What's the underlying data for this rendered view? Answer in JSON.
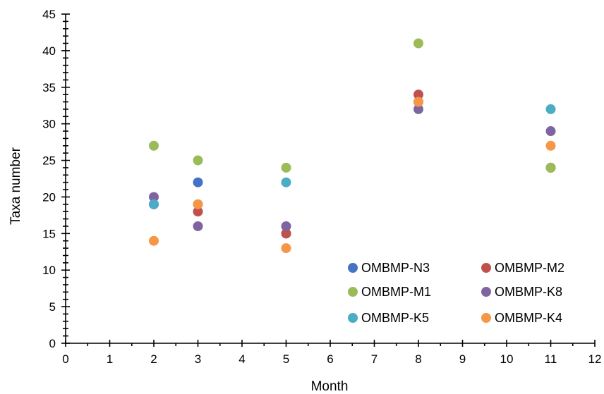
{
  "chart_data": {
    "type": "scatter",
    "title": "",
    "xlabel": "Month",
    "ylabel": "Taxa number",
    "xlim": [
      0,
      12
    ],
    "ylim": [
      0,
      45
    ],
    "x_ticks": [
      "0",
      "1",
      "2",
      "3",
      "4",
      "5",
      "6",
      "7",
      "8",
      "9",
      "10",
      "11",
      "12"
    ],
    "y_ticks": [
      "0",
      "5",
      "10",
      "15",
      "20",
      "25",
      "30",
      "35",
      "40",
      "45"
    ],
    "grid": false,
    "legend_position": "bottom-right",
    "series": [
      {
        "name": "OMBMP-N3",
        "color": "#4472c4",
        "points": [
          [
            2,
            19
          ],
          [
            3,
            22
          ],
          [
            5,
            15
          ],
          [
            8,
            33
          ],
          [
            11,
            24
          ]
        ]
      },
      {
        "name": "OMBMP-M2",
        "color": "#c0504d",
        "points": [
          [
            2,
            19
          ],
          [
            3,
            18
          ],
          [
            5,
            15
          ],
          [
            8,
            34
          ],
          [
            11,
            24
          ]
        ]
      },
      {
        "name": "OMBMP-M1",
        "color": "#9bbb59",
        "points": [
          [
            2,
            27
          ],
          [
            3,
            25
          ],
          [
            5,
            24
          ],
          [
            8,
            41
          ],
          [
            11,
            24
          ]
        ]
      },
      {
        "name": "OMBMP-K8",
        "color": "#8064a2",
        "points": [
          [
            2,
            20
          ],
          [
            3,
            16
          ],
          [
            5,
            16
          ],
          [
            8,
            32
          ],
          [
            11,
            29
          ]
        ]
      },
      {
        "name": "OMBMP-K5",
        "color": "#4bacc6",
        "points": [
          [
            2,
            19
          ],
          [
            3,
            19
          ],
          [
            5,
            22
          ],
          [
            8,
            33
          ],
          [
            11,
            32
          ]
        ]
      },
      {
        "name": "OMBMP-K4",
        "color": "#f79646",
        "points": [
          [
            2,
            14
          ],
          [
            3,
            19
          ],
          [
            5,
            13
          ],
          [
            8,
            33
          ],
          [
            11,
            27
          ]
        ]
      }
    ]
  }
}
